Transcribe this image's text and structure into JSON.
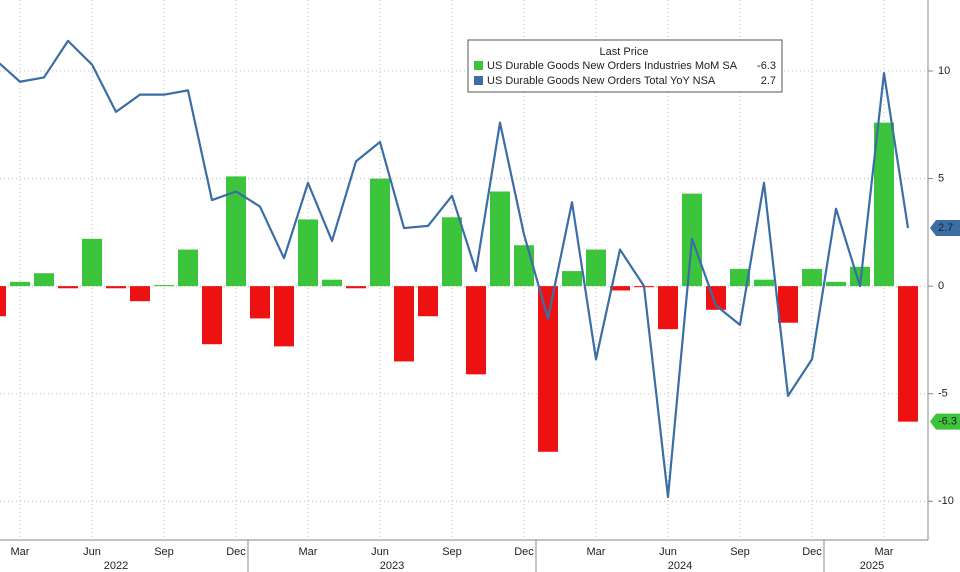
{
  "chart_data": {
    "type": "bar_line",
    "legend_title": "Last Price",
    "categories": [
      null,
      "Mar",
      null,
      null,
      "Jun",
      null,
      null,
      "Sep",
      null,
      null,
      "Dec",
      null,
      null,
      "Mar",
      null,
      null,
      "Jun",
      null,
      null,
      "Sep",
      null,
      null,
      "Dec",
      null,
      null,
      "Mar",
      null,
      null,
      "Jun",
      null,
      null,
      "Sep",
      null,
      null,
      "Dec",
      null,
      null,
      "Mar",
      null
    ],
    "years": [
      "2022",
      "2023",
      "2024",
      "2025"
    ],
    "series": [
      {
        "name": "US Durable Goods New Orders Industries MoM SA",
        "type": "bar",
        "color": "#3dc43d",
        "negative_color": "#ee1111",
        "values": [
          -1.4,
          0.2,
          0.6,
          -0.1,
          2.2,
          -0.1,
          -0.7,
          0.05,
          1.7,
          -2.7,
          5.1,
          -1.5,
          -2.8,
          3.1,
          0.3,
          -0.1,
          5.0,
          -3.5,
          -1.4,
          3.2,
          -4.1,
          4.4,
          1.9,
          -7.7,
          0.7,
          1.7,
          -0.2,
          -0.05,
          -2.0,
          4.3,
          -1.1,
          0.8,
          0.3,
          -1.7,
          0.8,
          0.2,
          0.9,
          7.6,
          -6.3
        ]
      },
      {
        "name": "US Durable Goods New Orders Total YoY NSA",
        "type": "line",
        "color": "#3a6ea5",
        "values": [
          10.5,
          9.5,
          9.7,
          11.4,
          10.3,
          8.1,
          8.9,
          8.9,
          9.1,
          4.0,
          4.4,
          3.7,
          1.3,
          4.8,
          2.1,
          5.8,
          6.7,
          2.7,
          2.8,
          4.2,
          0.7,
          7.6,
          2.4,
          -1.5,
          3.9,
          -3.4,
          1.7,
          0.0,
          -9.8,
          2.2,
          -0.9,
          -1.8,
          4.8,
          -5.1,
          -3.4,
          3.6,
          0.0,
          9.9,
          2.7
        ]
      }
    ],
    "ylim": [
      -11.8,
      13.3
    ],
    "yticks": [
      -10,
      -5,
      0,
      5,
      10
    ],
    "grid": true
  }
}
